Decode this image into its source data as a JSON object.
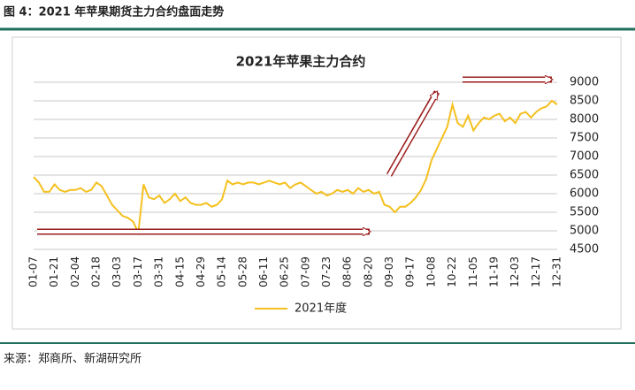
{
  "header": {
    "title": "图 4：2021 年苹果期货主力合约盘面走势"
  },
  "source": "来源：郑商所、新湖研究所",
  "chart_data": {
    "type": "line",
    "title": "2021年苹果主力合约",
    "categories": [
      "01-07",
      null,
      null,
      null,
      "01-21",
      null,
      null,
      null,
      "02-04",
      null,
      null,
      null,
      "02-18",
      null,
      null,
      null,
      "03-03",
      null,
      null,
      null,
      "03-17",
      null,
      null,
      null,
      "03-31",
      null,
      null,
      null,
      "04-15",
      null,
      null,
      null,
      "04-29",
      null,
      null,
      null,
      "05-14",
      null,
      null,
      null,
      "05-28",
      null,
      null,
      null,
      "06-11",
      null,
      null,
      null,
      "06-25",
      null,
      null,
      null,
      "07-09",
      null,
      null,
      null,
      "07-23",
      null,
      null,
      null,
      "08-06",
      null,
      null,
      null,
      "08-20",
      null,
      null,
      null,
      "09-03",
      null,
      null,
      null,
      "09-17",
      null,
      null,
      null,
      "10-08",
      null,
      null,
      null,
      "10-22",
      null,
      null,
      null,
      "11-05",
      null,
      null,
      null,
      "11-19",
      null,
      null,
      null,
      "12-03",
      null,
      null,
      null,
      "12-17",
      null,
      null,
      null,
      "12-31"
    ],
    "series": [
      {
        "name": "2021年度",
        "color": "#f5c01f",
        "values": [
          6450,
          6300,
          6050,
          6050,
          6250,
          6100,
          6050,
          6100,
          6100,
          6150,
          6050,
          6100,
          6300,
          6200,
          5950,
          5700,
          5550,
          5400,
          5350,
          5250,
          4950,
          6250,
          5900,
          5850,
          5950,
          5750,
          5850,
          6000,
          5800,
          5900,
          5750,
          5700,
          5700,
          5750,
          5650,
          5700,
          5850,
          6350,
          6250,
          6300,
          6250,
          6300,
          6300,
          6250,
          6300,
          6350,
          6300,
          6250,
          6300,
          6150,
          6250,
          6300,
          6200,
          6100,
          6000,
          6050,
          5950,
          6000,
          6100,
          6050,
          6100,
          6000,
          6150,
          6050,
          6100,
          6000,
          6050,
          5700,
          5650,
          5500,
          5650,
          5650,
          5750,
          5900,
          6100,
          6400,
          6900,
          7200,
          7500,
          7800,
          8400,
          7900,
          7800,
          8100,
          7700,
          7900,
          8050,
          8000,
          8100,
          8150,
          7950,
          8050,
          7900,
          8150,
          8200,
          8050,
          8200,
          8300,
          8350,
          8500,
          8400
        ]
      }
    ],
    "ylim": [
      4500,
      9000
    ],
    "yticks": [
      4500,
      5000,
      5500,
      6000,
      6500,
      7000,
      7500,
      8000,
      8500,
      9000
    ],
    "grid": true,
    "legend": "bottom"
  }
}
